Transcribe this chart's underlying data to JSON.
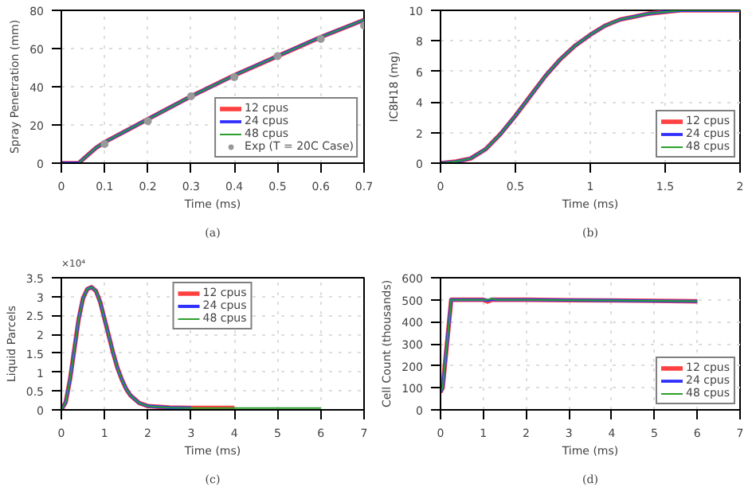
{
  "chart_data": [
    {
      "type": "line",
      "xlabel": "Time (ms)",
      "ylabel": "Spray Penetration (mm)",
      "annotations": [
        "(a)"
      ],
      "xlim": [
        0,
        0.7
      ],
      "ylim": [
        0,
        80
      ],
      "xticks": [
        0,
        0.1,
        0.2,
        0.3,
        0.4,
        0.5,
        0.6,
        0.7
      ],
      "yticks": [
        0,
        20,
        40,
        60,
        80
      ],
      "grid": true,
      "legend": "bottom right",
      "line_style": "solid",
      "x": [
        0,
        0.04,
        0.06,
        0.08,
        0.1,
        0.15,
        0.2,
        0.3,
        0.4,
        0.5,
        0.6,
        0.7
      ],
      "series": [
        {
          "name": "12 cpus",
          "color": "#ff4040",
          "values": [
            0,
            0,
            4,
            8,
            11,
            17,
            23,
            35,
            46,
            56,
            66,
            75
          ]
        },
        {
          "name": "24 cpus",
          "color": "#3030ff",
          "values": [
            0,
            0,
            4,
            8,
            11,
            17,
            23,
            35,
            46,
            56,
            66,
            75
          ]
        },
        {
          "name": "48 cpus",
          "color": "#2ca02c",
          "values": [
            0,
            0,
            4,
            8,
            11,
            17,
            23,
            35,
            46,
            56,
            66,
            75
          ]
        },
        {
          "name": "Exp (T = 20C Case)",
          "type": "scatter",
          "marker": "circle",
          "color": "#999999",
          "x": [
            0.1,
            0.2,
            0.3,
            0.4,
            0.5,
            0.6,
            0.7
          ],
          "values": [
            10,
            22,
            35,
            45,
            56,
            65,
            72
          ]
        }
      ]
    },
    {
      "type": "line",
      "xlabel": "Time (ms)",
      "ylabel": "IC8H18 (mg)",
      "annotations": [
        "(b)"
      ],
      "xlim": [
        0,
        2
      ],
      "ylim": [
        0,
        10
      ],
      "xticks": [
        0,
        0.5,
        1,
        1.5,
        2
      ],
      "yticks": [
        0,
        2,
        4,
        6,
        8,
        10
      ],
      "grid": true,
      "legend": "bottom right",
      "line_style": "solid",
      "x": [
        0,
        0.1,
        0.2,
        0.3,
        0.4,
        0.5,
        0.6,
        0.7,
        0.8,
        0.9,
        1.0,
        1.1,
        1.2,
        1.3,
        1.4,
        1.5,
        1.6,
        1.8,
        2.0
      ],
      "series": [
        {
          "name": "12 cpus",
          "color": "#ff4040",
          "values": [
            0,
            0.1,
            0.3,
            0.9,
            1.9,
            3.1,
            4.4,
            5.7,
            6.8,
            7.7,
            8.4,
            9.0,
            9.4,
            9.6,
            9.8,
            9.9,
            10,
            10,
            10
          ]
        },
        {
          "name": "24 cpus",
          "color": "#3030ff",
          "values": [
            0,
            0.1,
            0.3,
            0.9,
            1.9,
            3.1,
            4.4,
            5.7,
            6.8,
            7.7,
            8.4,
            9.0,
            9.4,
            9.6,
            9.8,
            9.9,
            10,
            10,
            10
          ]
        },
        {
          "name": "48 cpus",
          "color": "#2ca02c",
          "values": [
            0,
            0.1,
            0.3,
            0.9,
            1.9,
            3.1,
            4.4,
            5.7,
            6.8,
            7.7,
            8.4,
            9.0,
            9.4,
            9.6,
            9.8,
            9.9,
            10,
            10,
            10
          ]
        }
      ]
    },
    {
      "type": "line",
      "xlabel": "Time (ms)",
      "ylabel": "Liquid Parcels",
      "annotations": [
        "×10⁴",
        "(c)"
      ],
      "xlim": [
        0,
        7
      ],
      "ylim": [
        0,
        3.5
      ],
      "xticks": [
        0,
        1,
        2,
        3,
        4,
        5,
        6,
        7
      ],
      "yticks": [
        0,
        0.5,
        1,
        1.5,
        2,
        2.5,
        3,
        3.5
      ],
      "grid": true,
      "legend": "top",
      "line_style": "solid",
      "x": [
        0,
        0.1,
        0.2,
        0.3,
        0.4,
        0.5,
        0.6,
        0.7,
        0.8,
        0.9,
        1.0,
        1.1,
        1.2,
        1.3,
        1.4,
        1.5,
        1.6,
        1.8,
        2.0,
        2.5,
        3,
        4,
        5,
        6
      ],
      "series": [
        {
          "name": "12 cpus",
          "color": "#ff4040",
          "values": [
            0,
            0.2,
            0.8,
            1.6,
            2.4,
            2.95,
            3.2,
            3.25,
            3.15,
            2.85,
            2.4,
            1.95,
            1.5,
            1.1,
            0.8,
            0.55,
            0.38,
            0.18,
            0.1,
            0.06,
            0.05,
            0.05,
            null,
            null
          ]
        },
        {
          "name": "24 cpus",
          "color": "#3030ff",
          "values": [
            0,
            0.2,
            0.8,
            1.6,
            2.4,
            2.95,
            3.2,
            3.25,
            3.15,
            2.85,
            2.4,
            1.95,
            1.5,
            1.1,
            0.8,
            0.55,
            0.38,
            0.18,
            0.1,
            0.06,
            0.05,
            null,
            null,
            null
          ]
        },
        {
          "name": "48 cpus",
          "color": "#2ca02c",
          "values": [
            0,
            0.2,
            0.8,
            1.6,
            2.4,
            2.95,
            3.2,
            3.25,
            3.15,
            2.85,
            2.4,
            1.95,
            1.5,
            1.1,
            0.8,
            0.55,
            0.38,
            0.18,
            0.1,
            0.06,
            0.05,
            0.05,
            0.05,
            0.05
          ]
        }
      ]
    },
    {
      "type": "line",
      "xlabel": "Time (ms)",
      "ylabel": "Cell Count (thousands)",
      "annotations": [
        "(d)"
      ],
      "xlim": [
        0,
        7
      ],
      "ylim": [
        0,
        600
      ],
      "xticks": [
        0,
        1,
        2,
        3,
        4,
        5,
        6,
        7
      ],
      "yticks": [
        0,
        100,
        200,
        300,
        400,
        500,
        600
      ],
      "grid": true,
      "legend": "bottom right",
      "line_style": "solid",
      "x": [
        0,
        0.05,
        0.25,
        1,
        1.1,
        1.2,
        1.3,
        2,
        3,
        4,
        5,
        6
      ],
      "series": [
        {
          "name": "12 cpus",
          "color": "#ff4040",
          "values": [
            80,
            100,
            500,
            500,
            492,
            500,
            500,
            500,
            498,
            497,
            495,
            493
          ]
        },
        {
          "name": "24 cpus",
          "color": "#3030ff",
          "values": [
            80,
            100,
            500,
            500,
            497,
            502,
            500,
            500,
            498,
            497,
            495,
            493
          ]
        },
        {
          "name": "48 cpus",
          "color": "#2ca02c",
          "values": [
            80,
            100,
            500,
            500,
            500,
            505,
            500,
            500,
            498,
            497,
            495,
            493
          ]
        }
      ]
    }
  ]
}
